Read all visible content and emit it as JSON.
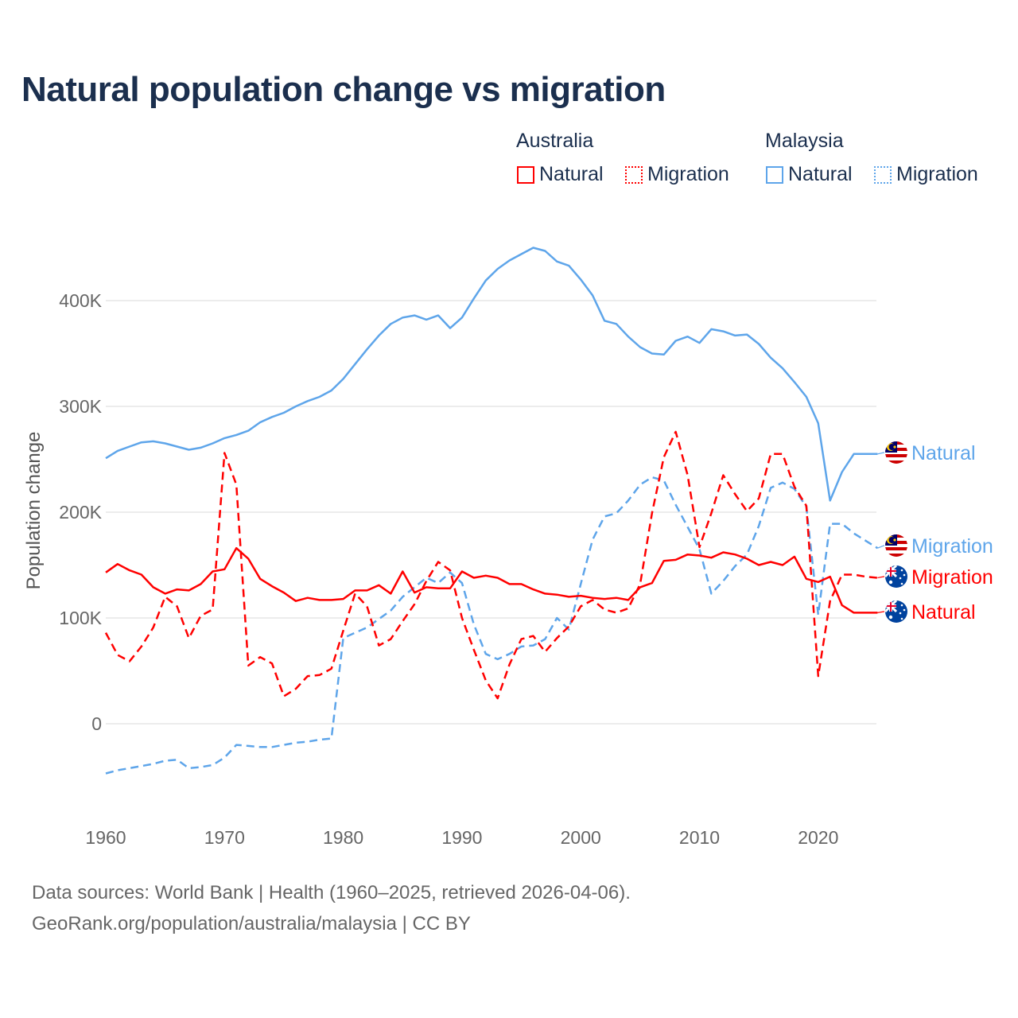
{
  "title": "Natural population change vs migration",
  "legend": {
    "groups": [
      {
        "name": "Australia",
        "items": [
          {
            "label": "Natural",
            "style": "solid",
            "color": "#ff0000"
          },
          {
            "label": "Migration",
            "style": "dotted",
            "color": "#ff0000"
          }
        ]
      },
      {
        "name": "Malaysia",
        "items": [
          {
            "label": "Natural",
            "style": "solid",
            "color": "#5ea5ea"
          },
          {
            "label": "Migration",
            "style": "dotted",
            "color": "#5ea5ea"
          }
        ]
      }
    ]
  },
  "footer": {
    "line1": "Data sources: World Bank | Health (1960–2025, retrieved 2026-04-06).",
    "line2": "GeoRank.org/population/australia/malaysia | CC BY"
  },
  "chart_data": {
    "type": "line",
    "title": "Natural population change vs migration",
    "xlabel": "",
    "ylabel": "Population change",
    "xlim": [
      1960,
      2025
    ],
    "ylim": [
      -75000,
      460000
    ],
    "grid": true,
    "legend_position": "top-right",
    "x_ticks": [
      1960,
      1970,
      1980,
      1990,
      2000,
      2010,
      2020
    ],
    "x_tick_labels": [
      "1960",
      "1970",
      "1980",
      "1990",
      "2000",
      "2010",
      "2020"
    ],
    "y_ticks": [
      0,
      100000,
      200000,
      300000,
      400000
    ],
    "y_tick_labels": [
      "0",
      "100K",
      "200K",
      "300K",
      "400K"
    ],
    "x_start": 1960,
    "series": [
      {
        "name": "Malaysia Natural",
        "end_label": "Natural",
        "country": "Malaysia",
        "color": "#5ea5ea",
        "dash": false,
        "values_k": [
          251,
          258,
          262,
          266,
          267,
          265,
          262,
          259,
          261,
          265,
          270,
          273,
          277,
          285,
          290,
          294,
          300,
          305,
          309,
          315,
          326,
          340,
          354,
          367,
          378,
          384,
          386,
          382,
          386,
          374,
          384,
          402,
          419,
          430,
          438,
          444,
          450,
          447,
          437,
          433,
          420,
          405,
          381,
          378,
          366,
          356,
          350,
          349,
          362,
          366,
          360,
          373,
          371,
          367,
          368,
          359,
          346,
          336,
          323,
          309,
          284,
          211,
          238,
          255,
          255,
          255
        ]
      },
      {
        "name": "Malaysia Migration",
        "end_label": "Migration",
        "country": "Malaysia",
        "color": "#5ea5ea",
        "dash": true,
        "values_k": [
          -47,
          -44,
          -42,
          -40,
          -38,
          -35,
          -34,
          -42,
          -41,
          -39,
          -32,
          -20,
          -21,
          -22,
          -22,
          -20,
          -18,
          -17,
          -15,
          -14,
          81,
          86,
          91,
          99,
          107,
          120,
          129,
          138,
          133,
          143,
          133,
          94,
          66,
          61,
          66,
          73,
          74,
          80,
          100,
          89,
          132,
          174,
          196,
          199,
          211,
          226,
          233,
          230,
          207,
          186,
          165,
          123,
          135,
          149,
          160,
          187,
          223,
          228,
          222,
          205,
          103,
          189,
          189,
          180,
          173,
          166
        ]
      },
      {
        "name": "Australia Migration",
        "end_label": "Migration",
        "country": "Australia",
        "color": "#ff0000",
        "dash": true,
        "values_k": [
          86,
          65,
          59,
          73,
          91,
          120,
          111,
          81,
          102,
          108,
          256,
          226,
          55,
          63,
          57,
          26,
          33,
          45,
          46,
          52,
          88,
          123,
          111,
          74,
          80,
          97,
          113,
          135,
          153,
          145,
          100,
          70,
          41,
          24,
          56,
          80,
          83,
          68,
          81,
          92,
          111,
          117,
          108,
          105,
          109,
          132,
          199,
          252,
          276,
          235,
          167,
          199,
          235,
          217,
          201,
          213,
          255,
          255,
          224,
          206,
          45,
          116,
          141,
          141,
          139,
          138
        ]
      },
      {
        "name": "Australia Natural",
        "end_label": "Natural",
        "country": "Australia",
        "color": "#ff0000",
        "dash": false,
        "values_k": [
          143,
          151,
          145,
          141,
          129,
          123,
          127,
          126,
          132,
          144,
          146,
          166,
          156,
          137,
          130,
          124,
          116,
          119,
          117,
          117,
          118,
          126,
          126,
          131,
          123,
          144,
          124,
          129,
          128,
          128,
          144,
          138,
          140,
          138,
          132,
          132,
          127,
          123,
          122,
          120,
          121,
          119,
          118,
          119,
          117,
          129,
          133,
          154,
          155,
          160,
          159,
          157,
          162,
          160,
          156,
          150,
          153,
          150,
          158,
          137,
          134,
          139,
          112,
          105,
          105,
          105
        ]
      }
    ]
  }
}
